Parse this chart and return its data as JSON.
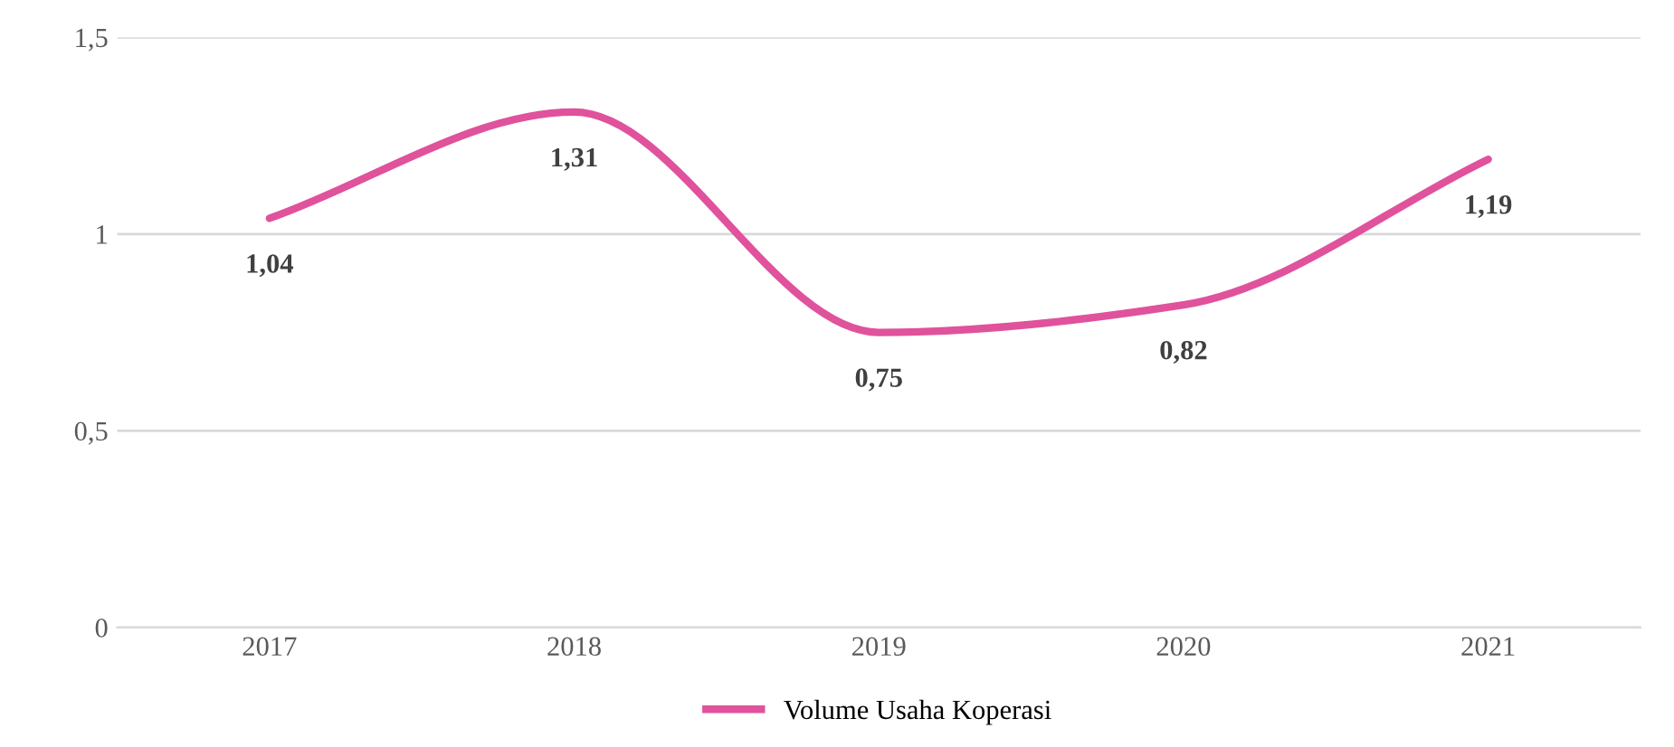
{
  "chart_data": {
    "type": "line",
    "categories": [
      "2017",
      "2018",
      "2019",
      "2020",
      "2021"
    ],
    "series": [
      {
        "name": "Volume Usaha Koperasi",
        "color": "#e0529c",
        "values": [
          1.04,
          1.31,
          0.75,
          0.82,
          1.19
        ],
        "value_labels": [
          "1,04",
          "1,31",
          "0,75",
          "0,82",
          "1,19"
        ]
      }
    ],
    "ylim": [
      0,
      1.5
    ],
    "yticks": [
      0,
      {
        "value": 0.5,
        "label": "0,5"
      },
      1,
      {
        "value": 1.5,
        "label": "1,5"
      }
    ],
    "grid": "y",
    "legend": "bottom",
    "marker": "none",
    "line_style": "solid"
  }
}
